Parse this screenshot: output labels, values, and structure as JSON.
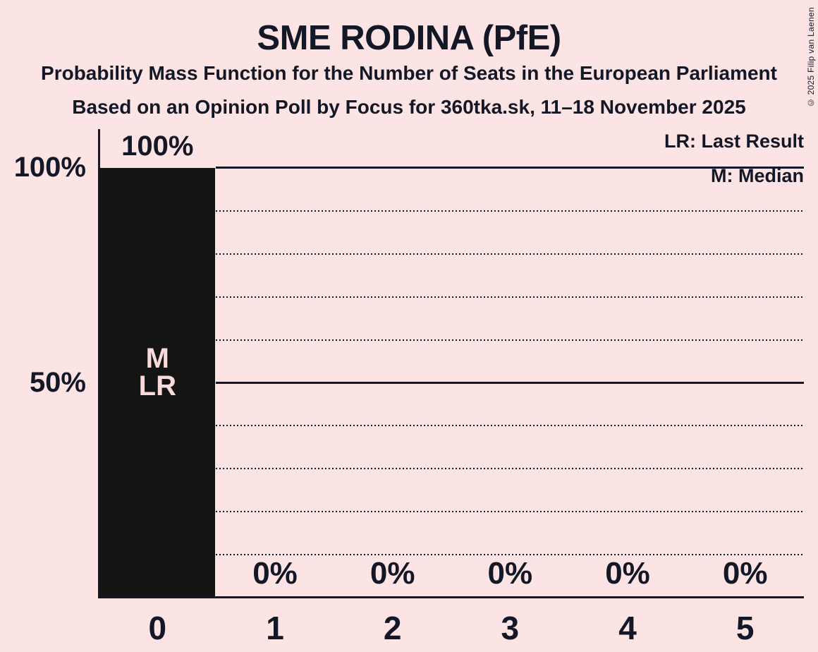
{
  "header": {
    "title": "SME RODINA (PfE)",
    "subtitle": "Probability Mass Function for the Number of Seats in the European Parliament",
    "poll_details": "Based on an Opinion Poll by Focus for 360tka.sk, 11–18 November 2025"
  },
  "legend": {
    "last_result": "LR: Last Result",
    "median": "M: Median"
  },
  "copyright": "© 2025 Filip van Laenen",
  "chart_data": {
    "type": "bar",
    "title": "SME RODINA (PfE)",
    "categories": [
      "0",
      "1",
      "2",
      "3",
      "4",
      "5"
    ],
    "values": [
      100,
      0,
      0,
      0,
      0,
      0
    ],
    "value_labels": [
      "100%",
      "0%",
      "0%",
      "0%",
      "0%",
      "0%"
    ],
    "bar_annotations": [
      [
        "M",
        "LR"
      ],
      [],
      [],
      [],
      [],
      []
    ],
    "median_seats": 0,
    "last_result_seats": 0,
    "ylim": [
      0,
      100
    ],
    "y_ticks": [
      {
        "pct": 100,
        "label": "100%"
      },
      {
        "pct": 50,
        "label": "50%"
      }
    ],
    "gridlines": {
      "solid_pct": [
        100,
        50
      ],
      "dotted_pct": [
        90,
        80,
        70,
        60,
        40,
        30,
        20,
        10
      ]
    },
    "legend_position": "top-right",
    "grid": true,
    "colors": {
      "background": "#fce4e4",
      "ink": "#131726",
      "bar": "#141414",
      "bar_label_text": "#f8dada"
    }
  }
}
